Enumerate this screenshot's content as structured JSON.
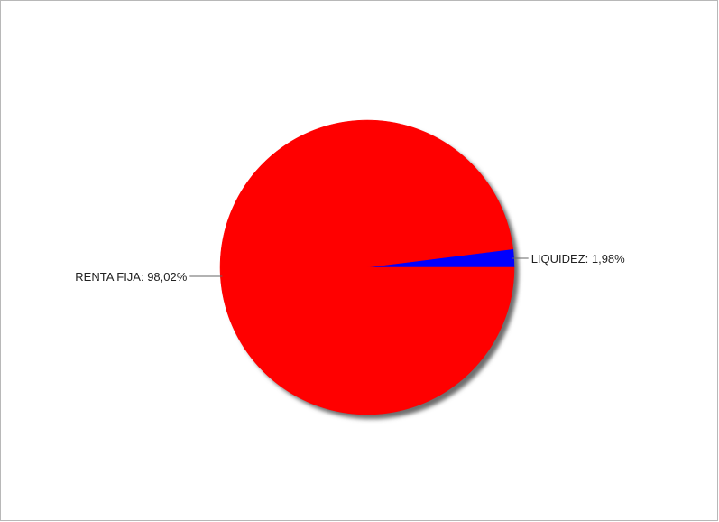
{
  "chart_data": {
    "type": "pie",
    "title": "",
    "slices": [
      {
        "label": "LIQUIDEZ: 1,98%",
        "value": 1.98,
        "color": "#0000ff"
      },
      {
        "label": "RENTA FIJA: 98,02%",
        "value": 98.02,
        "color": "#ff0000"
      }
    ],
    "legend": "none",
    "label_style": "callout-lines"
  }
}
